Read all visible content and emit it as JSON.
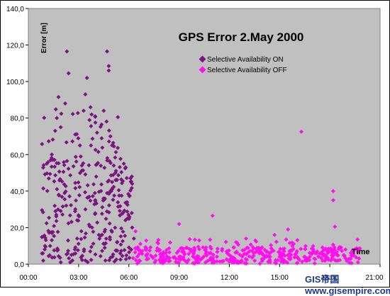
{
  "chart_data": {
    "type": "scatter",
    "title": "GPS Error 2.May 2000",
    "xlabel": "Time",
    "ylabel": "Error [m]",
    "x_unit": "hours",
    "x_ticks": [
      "00:00",
      "03:00",
      "06:00",
      "09:00",
      "12:00",
      "15:00",
      "18:00",
      "21:00"
    ],
    "y_ticks": [
      "0,0",
      "20,0",
      "40,0",
      "60,0",
      "80,0",
      "100,0",
      "120,0",
      "140,0"
    ],
    "xlim": [
      0,
      21
    ],
    "ylim": [
      0,
      140
    ],
    "grid": false,
    "legend_position": "top-right",
    "plot_background": "#c0c0c0",
    "series": [
      {
        "name": "Selective Availability ON",
        "color": "#7b1480",
        "marker": "diamond",
        "x_range": [
          0.8,
          6.3
        ],
        "sample_points": [
          {
            "x": 2.3,
            "y": 116.5
          },
          {
            "x": 4.7,
            "y": 116.5
          },
          {
            "x": 2.4,
            "y": 104.5
          },
          {
            "x": 4.8,
            "y": 108.5
          },
          {
            "x": 4.8,
            "y": 106.0
          },
          {
            "x": 3.5,
            "y": 102.0
          },
          {
            "x": 1.8,
            "y": 91.5
          },
          {
            "x": 3.4,
            "y": 93.0
          },
          {
            "x": 2.2,
            "y": 88.0
          },
          {
            "x": 3.3,
            "y": 84.0
          },
          {
            "x": 4.5,
            "y": 84.0
          },
          {
            "x": 1.7,
            "y": 80.0
          },
          {
            "x": 4.0,
            "y": 77.5
          },
          {
            "x": 2.8,
            "y": 71.0
          },
          {
            "x": 4.9,
            "y": 70.0
          },
          {
            "x": 1.6,
            "y": 73.0
          },
          {
            "x": 4.1,
            "y": 72.0
          },
          {
            "x": 5.0,
            "y": 65.0
          },
          {
            "x": 1.1,
            "y": 55.0
          },
          {
            "x": 1.4,
            "y": 60.0
          },
          {
            "x": 5.7,
            "y": 55.0
          },
          {
            "x": 6.1,
            "y": 47.0
          },
          {
            "x": 5.2,
            "y": 50.0
          },
          {
            "x": 6.2,
            "y": 44.0
          },
          {
            "x": 1.3,
            "y": 10.0
          },
          {
            "x": 4.6,
            "y": 2.0
          },
          {
            "x": 5.5,
            "y": 2.5
          },
          {
            "x": 2.5,
            "y": 1.0
          },
          {
            "x": 6.2,
            "y": 20.0
          },
          {
            "x": 6.3,
            "y": 14.0
          }
        ],
        "note_density": "dense_band_0_60"
      },
      {
        "name": "Selective Availability OFF",
        "color": "#ff10f0",
        "marker": "diamond",
        "x_range": [
          6.2,
          19.8
        ],
        "sample_points": [
          {
            "x": 16.3,
            "y": 72.5
          },
          {
            "x": 18.2,
            "y": 40.0
          },
          {
            "x": 18.2,
            "y": 35.0
          },
          {
            "x": 11.0,
            "y": 26.5
          },
          {
            "x": 9.0,
            "y": 22.0
          },
          {
            "x": 15.5,
            "y": 19.0
          },
          {
            "x": 18.3,
            "y": 20.5
          },
          {
            "x": 6.4,
            "y": 18.0
          },
          {
            "x": 13.0,
            "y": 14.0
          },
          {
            "x": 14.7,
            "y": 16.0
          },
          {
            "x": 10.2,
            "y": 13.0
          },
          {
            "x": 12.4,
            "y": 12.0
          }
        ],
        "note_density": "dense_band_0_12"
      }
    ]
  },
  "watermark": "GIS帝国 www.gisempire.com"
}
